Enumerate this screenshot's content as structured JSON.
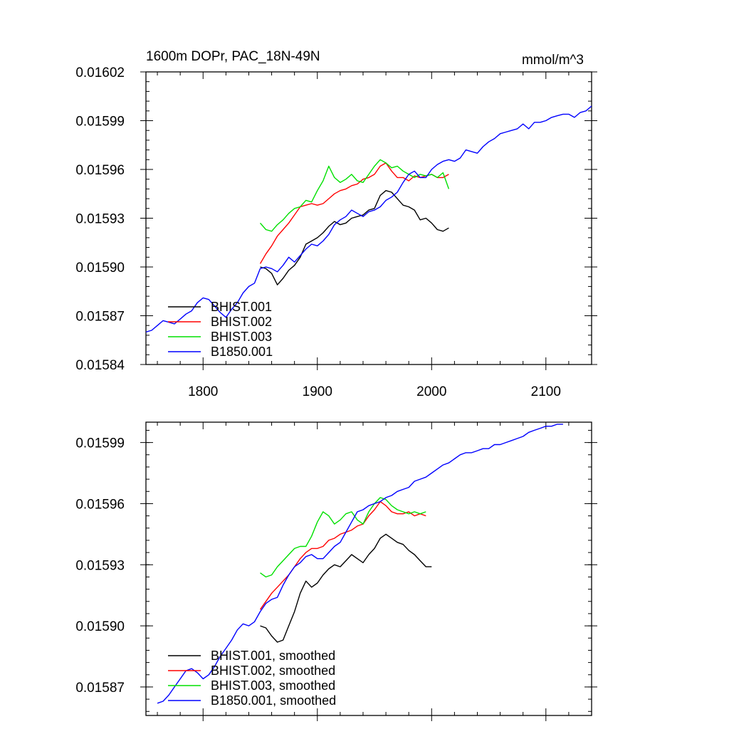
{
  "chart_data": [
    {
      "type": "line",
      "title": "1600m DOPr, PAC_18N-49N",
      "units": "mmol/m^3",
      "xlim": [
        1750,
        2140
      ],
      "ylim": [
        0.01584,
        0.01602
      ],
      "x_ticks": [
        1800,
        1900,
        2000,
        2100
      ],
      "x_tick_labels": [
        "1800",
        "1900",
        "2000",
        "2100"
      ],
      "y_ticks": [
        0.01584,
        0.01587,
        0.0159,
        0.01593,
        0.01596,
        0.01599,
        0.01602
      ],
      "y_tick_labels": [
        "0.01584",
        "0.01587",
        "0.01590",
        "0.01593",
        "0.01596",
        "0.01599",
        "0.01602"
      ],
      "legend_position": "lower-left",
      "series": [
        {
          "name": "BHIST.001",
          "color": "#000000",
          "start": 1850,
          "step": 5,
          "values": [
            0.0159,
            0.015899,
            0.015896,
            0.015889,
            0.015893,
            0.015898,
            0.015901,
            0.015906,
            0.015914,
            0.015916,
            0.015918,
            0.015921,
            0.015925,
            0.015928,
            0.015926,
            0.015927,
            0.01593,
            0.015931,
            0.015932,
            0.015935,
            0.015936,
            0.015944,
            0.015947,
            0.015946,
            0.015942,
            0.015938,
            0.015937,
            0.015935,
            0.015929,
            0.01593,
            0.015927,
            0.015923,
            0.015922,
            0.015924
          ]
        },
        {
          "name": "BHIST.002",
          "color": "#ff0000",
          "start": 1850,
          "step": 5,
          "values": [
            0.015902,
            0.015908,
            0.015913,
            0.015919,
            0.015923,
            0.015927,
            0.015932,
            0.015937,
            0.015938,
            0.015939,
            0.015938,
            0.015939,
            0.015942,
            0.015945,
            0.015947,
            0.015948,
            0.01595,
            0.015951,
            0.015954,
            0.015955,
            0.015957,
            0.015962,
            0.015964,
            0.015959,
            0.015955,
            0.015955,
            0.015953,
            0.015956,
            0.015955,
            0.015956,
            0.015957,
            0.015955,
            0.015955,
            0.015957
          ]
        },
        {
          "name": "BHIST.003",
          "color": "#00e000",
          "start": 1850,
          "step": 5,
          "values": [
            0.015927,
            0.015923,
            0.015922,
            0.015926,
            0.015929,
            0.015933,
            0.015936,
            0.015937,
            0.015941,
            0.01594,
            0.015947,
            0.015953,
            0.015962,
            0.015955,
            0.015952,
            0.015954,
            0.015957,
            0.015953,
            0.015952,
            0.015957,
            0.015962,
            0.015966,
            0.015964,
            0.015961,
            0.015962,
            0.015959,
            0.015957,
            0.015955,
            0.015957,
            0.015956,
            0.015957,
            0.015955,
            0.015958,
            0.015948
          ]
        },
        {
          "name": "B1850.001",
          "color": "#0000ff",
          "start": 1750,
          "step": 5,
          "values": [
            0.01586,
            0.015861,
            0.015864,
            0.015867,
            0.015866,
            0.015865,
            0.015868,
            0.015871,
            0.015873,
            0.015878,
            0.015881,
            0.01588,
            0.015876,
            0.015872,
            0.015869,
            0.015874,
            0.015878,
            0.015884,
            0.015888,
            0.01589,
            0.015899,
            0.0159,
            0.015899,
            0.015897,
            0.015901,
            0.015906,
            0.015903,
            0.015907,
            0.015911,
            0.015914,
            0.015913,
            0.015916,
            0.01592,
            0.015926,
            0.015929,
            0.015931,
            0.015935,
            0.015933,
            0.015931,
            0.015934,
            0.015935,
            0.015937,
            0.015941,
            0.015943,
            0.015946,
            0.015952,
            0.015957,
            0.015959,
            0.015955,
            0.015955,
            0.01596,
            0.015963,
            0.015965,
            0.015966,
            0.015965,
            0.015967,
            0.015972,
            0.015971,
            0.01597,
            0.015974,
            0.015977,
            0.015979,
            0.015982,
            0.015983,
            0.015984,
            0.015985,
            0.015988,
            0.015985,
            0.015989,
            0.015989,
            0.01599,
            0.015992,
            0.015993,
            0.015994,
            0.015994,
            0.015992,
            0.015995,
            0.015996,
            0.015999
          ]
        }
      ]
    },
    {
      "type": "line",
      "title": "",
      "xlim": [
        1750,
        2140
      ],
      "ylim": [
        0.015856,
        0.016
      ],
      "x_ticks": [
        1800,
        1900,
        2000,
        2100
      ],
      "x_tick_labels": [],
      "y_ticks": [
        0.01587,
        0.0159,
        0.01593,
        0.01596,
        0.01599
      ],
      "y_tick_labels": [
        "0.01587",
        "0.01590",
        "0.01593",
        "0.01596",
        "0.01599"
      ],
      "legend_position": "lower-left",
      "series": [
        {
          "name": "BHIST.001, smoothed",
          "color": "#000000",
          "start": 1850,
          "step": 5,
          "values": [
            0.0159,
            0.015899,
            0.015895,
            0.015892,
            0.015893,
            0.0159,
            0.015907,
            0.015916,
            0.015922,
            0.015919,
            0.015921,
            0.015925,
            0.015928,
            0.01593,
            0.015929,
            0.015932,
            0.015935,
            0.015933,
            0.015931,
            0.015935,
            0.015938,
            0.015943,
            0.015945,
            0.015943,
            0.015941,
            0.01594,
            0.015937,
            0.015935,
            0.015932,
            0.015929,
            0.015929
          ]
        },
        {
          "name": "BHIST.002, smoothed",
          "color": "#ff0000",
          "start": 1850,
          "step": 5,
          "values": [
            0.015908,
            0.015912,
            0.015916,
            0.015919,
            0.015922,
            0.015925,
            0.015929,
            0.015933,
            0.015936,
            0.015938,
            0.015938,
            0.015939,
            0.015942,
            0.015943,
            0.015945,
            0.015946,
            0.015947,
            0.015949,
            0.01595,
            0.015954,
            0.015957,
            0.015961,
            0.015959,
            0.015956,
            0.015955,
            0.015955,
            0.015956,
            0.015954,
            0.015955,
            0.015954
          ]
        },
        {
          "name": "BHIST.003, smoothed",
          "color": "#00e000",
          "start": 1850,
          "step": 5,
          "values": [
            0.015926,
            0.015924,
            0.015925,
            0.015929,
            0.015932,
            0.015935,
            0.015938,
            0.015939,
            0.015939,
            0.015944,
            0.015951,
            0.015956,
            0.015954,
            0.01595,
            0.015952,
            0.015955,
            0.015956,
            0.015952,
            0.01595,
            0.015956,
            0.01596,
            0.015963,
            0.015962,
            0.015959,
            0.015957,
            0.015956,
            0.015955,
            0.015956,
            0.015955,
            0.015956
          ]
        },
        {
          "name": "B1850.001, smoothed",
          "color": "#0000ff",
          "start": 1760,
          "step": 5,
          "values": [
            0.015862,
            0.015863,
            0.015866,
            0.01587,
            0.015874,
            0.015878,
            0.015879,
            0.015877,
            0.015874,
            0.015876,
            0.01588,
            0.015885,
            0.015889,
            0.015893,
            0.015898,
            0.015901,
            0.0159,
            0.015902,
            0.015907,
            0.015911,
            0.015913,
            0.015914,
            0.01592,
            0.015925,
            0.015929,
            0.015931,
            0.015934,
            0.015935,
            0.015933,
            0.015933,
            0.015936,
            0.015939,
            0.015941,
            0.015946,
            0.015951,
            0.015956,
            0.015957,
            0.015959,
            0.01596,
            0.015961,
            0.015963,
            0.015964,
            0.015966,
            0.015967,
            0.015968,
            0.015971,
            0.015972,
            0.015973,
            0.015975,
            0.015977,
            0.015979,
            0.01598,
            0.015982,
            0.015984,
            0.015985,
            0.015985,
            0.015986,
            0.015987,
            0.015987,
            0.015989,
            0.015989,
            0.01599,
            0.015991,
            0.015992,
            0.015993,
            0.015995,
            0.015996,
            0.015997,
            0.015998,
            0.015998,
            0.015999,
            0.015999
          ]
        }
      ]
    }
  ]
}
